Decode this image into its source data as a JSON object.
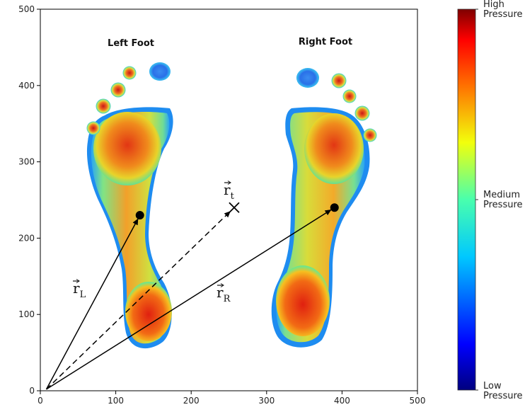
{
  "chart_data": {
    "type": "heatmap",
    "title": "",
    "xlabel": "",
    "ylabel": "",
    "xlim": [
      0,
      500
    ],
    "ylim": [
      0,
      500
    ],
    "x_ticks": [
      0,
      100,
      200,
      300,
      400,
      500
    ],
    "y_ticks": [
      0,
      100,
      200,
      300,
      400,
      500
    ],
    "grid": false,
    "annotations": {
      "left_title": "Left Foot",
      "right_title": "Right Foot"
    },
    "points": [
      {
        "name": "left_center",
        "x": 132,
        "y": 230
      },
      {
        "name": "right_center",
        "x": 390,
        "y": 240
      },
      {
        "name": "target",
        "x": 257,
        "y": 240,
        "marker": "x"
      }
    ],
    "vectors": [
      {
        "from": [
          8,
          2
        ],
        "to": [
          132,
          230
        ],
        "style": "solid",
        "label_main": "r",
        "label_sub": "L"
      },
      {
        "from": [
          8,
          2
        ],
        "to": [
          257,
          240
        ],
        "style": "dashed",
        "label_main": "r",
        "label_sub": "t"
      },
      {
        "from": [
          8,
          2
        ],
        "to": [
          390,
          240
        ],
        "style": "solid",
        "label_main": "r",
        "label_sub": "R"
      }
    ],
    "colorbar": {
      "colormap": "jet",
      "labels": [
        {
          "pos": 1.0,
          "line1": "High",
          "line2": "Pressure"
        },
        {
          "pos": 0.5,
          "line1": "Medium",
          "line2": "Pressure"
        },
        {
          "pos": 0.0,
          "line1": "Low",
          "line2": "Pressure"
        }
      ]
    }
  }
}
